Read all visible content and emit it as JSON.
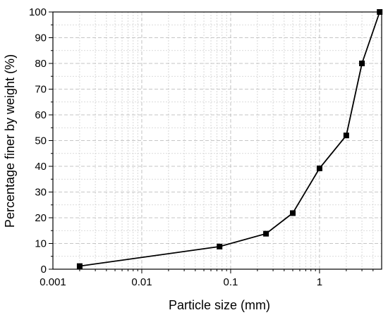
{
  "chart_data": {
    "type": "line",
    "title": "",
    "xlabel": "Particle size (mm)",
    "ylabel": "Percentage finer by weight (%)",
    "x_scale": "log",
    "xlim": [
      0.001,
      5
    ],
    "ylim": [
      0,
      100
    ],
    "x_ticks": [
      {
        "value": 0.001,
        "label": "0.001"
      },
      {
        "value": 0.01,
        "label": "0.01"
      },
      {
        "value": 0.1,
        "label": "0.1"
      },
      {
        "value": 1,
        "label": "1"
      }
    ],
    "y_ticks": [
      {
        "value": 0,
        "label": "0"
      },
      {
        "value": 10,
        "label": "10"
      },
      {
        "value": 20,
        "label": "20"
      },
      {
        "value": 30,
        "label": "30"
      },
      {
        "value": 40,
        "label": "40"
      },
      {
        "value": 50,
        "label": "50"
      },
      {
        "value": 60,
        "label": "60"
      },
      {
        "value": 70,
        "label": "70"
      },
      {
        "value": 80,
        "label": "80"
      },
      {
        "value": 90,
        "label": "90"
      },
      {
        "value": 100,
        "label": "100"
      }
    ],
    "grid": true,
    "legend": "none",
    "series": [
      {
        "marker": "square",
        "color": "#000000",
        "points": [
          {
            "x": 0.002,
            "y": 1.2
          },
          {
            "x": 0.075,
            "y": 8.8
          },
          {
            "x": 0.25,
            "y": 13.8
          },
          {
            "x": 0.5,
            "y": 21.8
          },
          {
            "x": 1,
            "y": 39.2
          },
          {
            "x": 2,
            "y": 52
          },
          {
            "x": 3,
            "y": 80
          },
          {
            "x": 4.75,
            "y": 100
          }
        ]
      }
    ]
  }
}
